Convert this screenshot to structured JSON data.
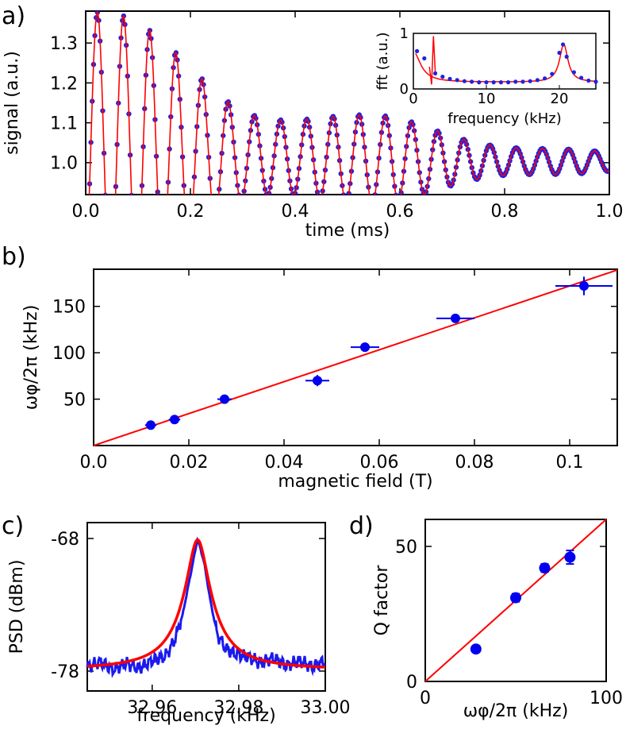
{
  "panels": {
    "a": "a)",
    "b": "b)",
    "c": "c)",
    "d": "d)"
  },
  "chart_data": [
    {
      "id": "a",
      "type": "line",
      "xlabel": "time (ms)",
      "ylabel": "signal (a.u.)",
      "xlim": [
        0,
        1.0
      ],
      "ylim": [
        0.92,
        1.38
      ],
      "xticks": [
        0.0,
        0.2,
        0.4,
        0.6,
        0.8,
        1.0
      ],
      "xtick_labels": [
        "0.0",
        "0.2",
        "0.4",
        "0.6",
        "0.8",
        "1.0"
      ],
      "yticks": [
        1.0,
        1.1,
        1.2,
        1.3
      ],
      "ytick_labels": [
        "1.0",
        "1.1",
        "1.2",
        "1.3"
      ],
      "colors": {
        "data": "#2222dd",
        "fit": "#ff0000"
      },
      "series": [
        {
          "style": "points",
          "x": [
            0.0,
            0.0167,
            0.0667,
            0.1167,
            0.1667,
            0.2167,
            0.2667,
            0.3167,
            0.3667,
            0.4167,
            0.4667,
            0.5167,
            0.5667,
            0.6167,
            0.6667,
            0.7167,
            0.7667,
            0.8167,
            0.8667,
            0.9167,
            0.9667,
            1.0
          ],
          "y": [
            1.02,
            1.35,
            1.27,
            1.21,
            1.16,
            1.12,
            1.12,
            1.1,
            1.1,
            1.08,
            1.07,
            1.06,
            1.05,
            1.05,
            1.04,
            1.04,
            1.04,
            1.03,
            1.03,
            1.02,
            1.02,
            0.99
          ]
        },
        {
          "style": "line",
          "model": "damped-beat",
          "params": {
            "f": 20.0,
            "offset": 1.0,
            "envelope": [
              0.35,
              0.27,
              0.21,
              0.15,
              0.12,
              0.1,
              0.09,
              0.07,
              0.05,
              0.035,
              0.02
            ]
          }
        }
      ],
      "inset": {
        "type": "line",
        "xlabel": "frequency (kHz)",
        "ylabel": "fft (a.u.)",
        "xlim": [
          0,
          25
        ],
        "ylim": [
          0,
          1.0
        ],
        "xticks": [
          0,
          10,
          20
        ],
        "xtick_labels": [
          "0",
          "10",
          "20"
        ],
        "yticks": [
          0,
          1
        ],
        "ytick_labels": [
          "0",
          "1"
        ],
        "points_x": [
          0.5,
          1.5,
          3,
          4,
          5,
          6,
          7,
          8,
          9,
          10,
          11,
          12,
          13,
          14,
          15,
          16,
          17,
          18,
          19,
          20,
          20.5,
          21,
          22,
          23,
          24,
          25
        ],
        "points_y": [
          0.68,
          0.55,
          0.28,
          0.22,
          0.18,
          0.16,
          0.14,
          0.13,
          0.12,
          0.12,
          0.12,
          0.12,
          0.12,
          0.13,
          0.13,
          0.14,
          0.16,
          0.19,
          0.27,
          0.65,
          0.8,
          0.58,
          0.3,
          0.2,
          0.15,
          0.13
        ]
      }
    },
    {
      "id": "b",
      "type": "scatter",
      "xlabel": "magnetic field (T)",
      "ylabel": "ωφ/2π (kHz)",
      "xlim": [
        0,
        0.11
      ],
      "ylim": [
        0,
        190
      ],
      "xticks": [
        0.0,
        0.02,
        0.04,
        0.06,
        0.08,
        0.1
      ],
      "xtick_labels": [
        "0.0",
        "0.02",
        "0.04",
        "0.06",
        "0.08",
        "0.1"
      ],
      "yticks": [
        50,
        100,
        150
      ],
      "ytick_labels": [
        "50",
        "100",
        "150"
      ],
      "points": [
        {
          "x": 0.012,
          "y": 22,
          "xerr": 0.0012,
          "yerr": 3
        },
        {
          "x": 0.017,
          "y": 28,
          "xerr": 0.0012,
          "yerr": 3
        },
        {
          "x": 0.0275,
          "y": 50,
          "xerr": 0.0015,
          "yerr": 3
        },
        {
          "x": 0.047,
          "y": 70,
          "xerr": 0.0025,
          "yerr": 6
        },
        {
          "x": 0.057,
          "y": 106,
          "xerr": 0.003,
          "yerr": 5
        },
        {
          "x": 0.076,
          "y": 137,
          "xerr": 0.004,
          "yerr": 4
        },
        {
          "x": 0.103,
          "y": 172,
          "xerr": 0.006,
          "yerr": 10
        }
      ],
      "fit": {
        "slope": 1720,
        "intercept": 0
      },
      "colors": {
        "data": "#0000ee",
        "fit": "#ff0000"
      }
    },
    {
      "id": "c",
      "type": "line",
      "xlabel": "frequency (kHz)",
      "ylabel": "PSD (dBm)",
      "xlim": [
        32.945,
        33.0
      ],
      "ylim": [
        -79.5,
        -66.8
      ],
      "xticks": [
        32.96,
        32.98,
        33.0
      ],
      "xtick_labels": [
        "32.96",
        "32.98",
        "33.00"
      ],
      "yticks": [
        -68,
        -78
      ],
      "ytick_labels": [
        "-68",
        "-78"
      ],
      "series": [
        {
          "name": "",
          "x": [
            32.945,
            32.948,
            32.951,
            32.954,
            32.957,
            32.96,
            32.963,
            32.965,
            32.967,
            32.969,
            32.9705,
            32.972,
            32.9735,
            32.975,
            32.977,
            32.979,
            32.982,
            32.985,
            32.988,
            32.991,
            32.994,
            32.997,
            33.0
          ],
          "y": [
            -77.7,
            -77.3,
            -77.9,
            -77.4,
            -77.8,
            -77.2,
            -76.9,
            -75.8,
            -73.8,
            -70.5,
            -68.0,
            -69.8,
            -72.8,
            -75.2,
            -76.3,
            -76.7,
            -76.9,
            -77.4,
            -77.0,
            -77.6,
            -77.2,
            -77.7,
            -77.2
          ]
        },
        {
          "name": "",
          "model": "lorentzian",
          "center": 32.9705,
          "width": 0.0022,
          "peak": -68.1,
          "base": -77.9
        }
      ],
      "colors": {
        "data": "#1a1aee",
        "fit": "#ff0000"
      }
    },
    {
      "id": "d",
      "type": "scatter",
      "xlabel": "ωφ/2π (kHz)",
      "ylabel": "Q factor",
      "xlim": [
        0,
        100
      ],
      "ylim": [
        0,
        60
      ],
      "xticks": [
        0,
        100
      ],
      "xtick_labels": [
        "0",
        "100"
      ],
      "yticks": [
        0,
        50
      ],
      "ytick_labels": [
        "0",
        "50"
      ],
      "points": [
        {
          "x": 28,
          "y": 12,
          "yerr": 0
        },
        {
          "x": 50,
          "y": 31,
          "yerr": 1.5
        },
        {
          "x": 66,
          "y": 42,
          "yerr": 1.5
        },
        {
          "x": 80,
          "y": 46,
          "yerr": 2.5
        }
      ],
      "fit": {
        "slope": 0.6,
        "intercept": 0
      },
      "colors": {
        "data": "#0000ee",
        "fit": "#ff0000"
      }
    }
  ]
}
